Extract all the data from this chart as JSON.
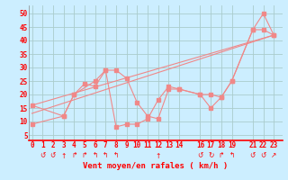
{
  "xlabel": "Vent moyen/en rafales ( km/h )",
  "background_color": "#cceeff",
  "grid_color": "#aacccc",
  "line_color": "#f08888",
  "x_ticks": [
    0,
    1,
    2,
    3,
    4,
    5,
    6,
    7,
    8,
    9,
    10,
    11,
    12,
    13,
    14,
    16,
    17,
    18,
    19,
    21,
    22,
    23
  ],
  "xlim": [
    -0.3,
    23.8
  ],
  "ylim": [
    3,
    53
  ],
  "y_ticks": [
    5,
    10,
    15,
    20,
    25,
    30,
    35,
    40,
    45,
    50
  ],
  "line1_x": [
    0,
    3,
    4,
    6,
    7,
    8,
    9,
    10,
    11,
    12,
    13,
    14,
    16,
    17,
    18,
    19,
    21,
    22,
    23
  ],
  "line1_y": [
    9,
    12,
    20,
    25,
    29,
    8,
    9,
    9,
    11,
    18,
    23,
    22,
    20,
    15,
    19,
    25,
    44,
    50,
    42
  ],
  "line2_x": [
    0,
    3,
    4,
    5,
    6,
    7,
    8,
    9,
    10,
    11,
    12,
    13,
    14,
    16,
    17,
    18,
    19,
    21,
    22,
    23
  ],
  "line2_y": [
    16,
    12,
    20,
    24,
    23,
    29,
    29,
    26,
    17,
    12,
    11,
    22,
    22,
    20,
    20,
    19,
    25,
    44,
    44,
    42
  ],
  "trend1_x": [
    0,
    23
  ],
  "trend1_y": [
    13,
    42
  ],
  "trend2_x": [
    0,
    23
  ],
  "trend2_y": [
    16,
    42
  ],
  "arrows_x": [
    1,
    2,
    3,
    4,
    5,
    6,
    7,
    8,
    12,
    16,
    17,
    18,
    19,
    21,
    22,
    23
  ],
  "tick_fontsize": 5.5,
  "label_fontsize": 6.5
}
